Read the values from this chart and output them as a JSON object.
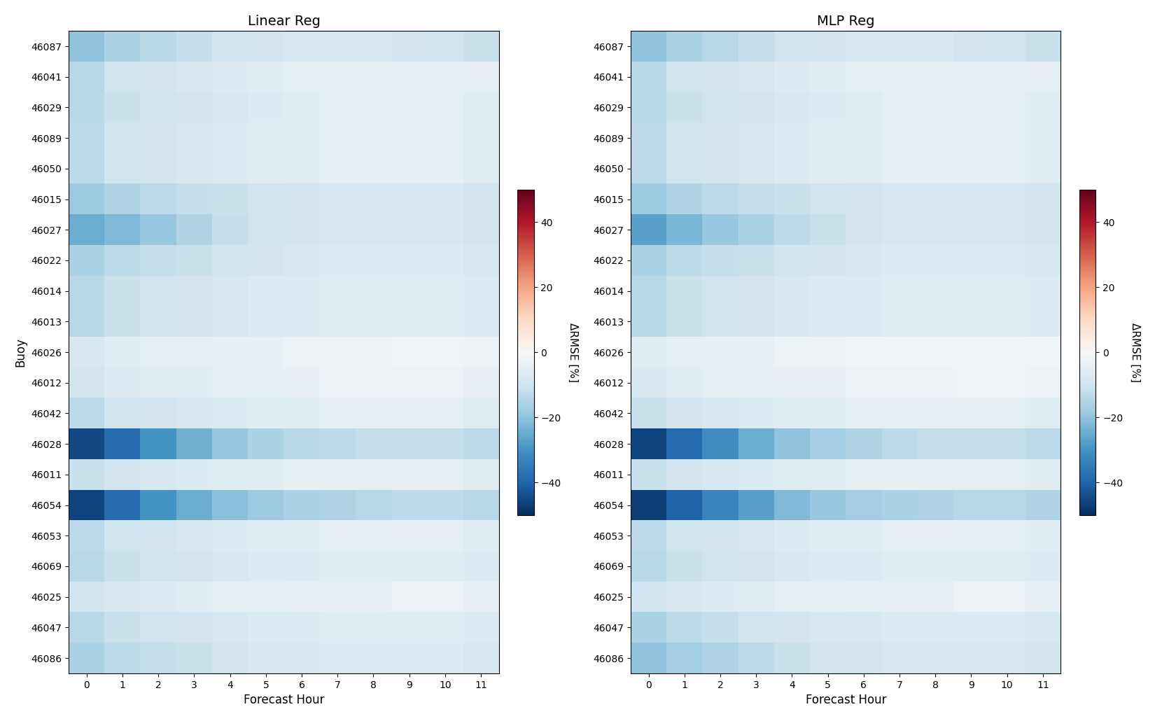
{
  "buoys": [
    "46087",
    "46041",
    "46029",
    "46089",
    "46050",
    "46015",
    "46027",
    "46022",
    "46014",
    "46013",
    "46026",
    "46012",
    "46042",
    "46028",
    "46011",
    "46054",
    "46053",
    "46069",
    "46025",
    "46047",
    "46086"
  ],
  "forecast_hours": [
    0,
    1,
    2,
    3,
    4,
    5,
    6,
    7,
    8,
    9,
    10,
    11
  ],
  "title_left": "Linear Reg",
  "title_right": "MLP Reg",
  "xlabel": "Forecast Hour",
  "ylabel": "Buoy",
  "cbar_label": "ΔRMSE [%]",
  "vmin": -50,
  "vmax": 50,
  "cmap": "RdBu_r",
  "linear_data": [
    [
      -20,
      -16,
      -14,
      -12,
      -10,
      -9,
      -8,
      -8,
      -8,
      -9,
      -10,
      -11
    ],
    [
      -14,
      -10,
      -9,
      -8,
      -7,
      -6,
      -5,
      -4,
      -4,
      -4,
      -4,
      -5
    ],
    [
      -14,
      -11,
      -10,
      -9,
      -8,
      -7,
      -6,
      -5,
      -5,
      -5,
      -5,
      -6
    ],
    [
      -13,
      -10,
      -9,
      -8,
      -7,
      -6,
      -6,
      -5,
      -5,
      -5,
      -5,
      -6
    ],
    [
      -13,
      -10,
      -9,
      -8,
      -7,
      -6,
      -6,
      -5,
      -5,
      -5,
      -5,
      -6
    ],
    [
      -18,
      -15,
      -13,
      -12,
      -11,
      -10,
      -9,
      -8,
      -8,
      -8,
      -8,
      -9
    ],
    [
      -25,
      -22,
      -19,
      -15,
      -12,
      -10,
      -9,
      -8,
      -8,
      -8,
      -8,
      -9
    ],
    [
      -16,
      -13,
      -12,
      -11,
      -10,
      -9,
      -8,
      -7,
      -7,
      -7,
      -7,
      -8
    ],
    [
      -14,
      -11,
      -10,
      -9,
      -8,
      -7,
      -7,
      -6,
      -6,
      -6,
      -6,
      -7
    ],
    [
      -14,
      -11,
      -10,
      -9,
      -8,
      -7,
      -7,
      -6,
      -6,
      -6,
      -6,
      -7
    ],
    [
      -8,
      -6,
      -5,
      -5,
      -4,
      -4,
      -3,
      -3,
      -3,
      -2,
      -2,
      -3
    ],
    [
      -9,
      -7,
      -6,
      -6,
      -5,
      -5,
      -4,
      -3,
      -3,
      -3,
      -3,
      -4
    ],
    [
      -13,
      -10,
      -9,
      -8,
      -7,
      -6,
      -6,
      -5,
      -5,
      -5,
      -5,
      -6
    ],
    [
      -45,
      -38,
      -30,
      -24,
      -19,
      -16,
      -14,
      -13,
      -12,
      -12,
      -12,
      -13
    ],
    [
      -11,
      -9,
      -8,
      -7,
      -6,
      -6,
      -5,
      -5,
      -5,
      -5,
      -5,
      -6
    ],
    [
      -46,
      -38,
      -30,
      -25,
      -21,
      -18,
      -16,
      -15,
      -14,
      -13,
      -13,
      -14
    ],
    [
      -13,
      -10,
      -9,
      -8,
      -7,
      -6,
      -6,
      -5,
      -5,
      -5,
      -5,
      -6
    ],
    [
      -14,
      -11,
      -10,
      -9,
      -8,
      -7,
      -7,
      -6,
      -6,
      -6,
      -6,
      -7
    ],
    [
      -10,
      -8,
      -7,
      -6,
      -5,
      -5,
      -4,
      -4,
      -4,
      -3,
      -3,
      -4
    ],
    [
      -14,
      -11,
      -10,
      -9,
      -8,
      -7,
      -7,
      -6,
      -6,
      -6,
      -6,
      -7
    ],
    [
      -16,
      -13,
      -12,
      -11,
      -9,
      -8,
      -8,
      -7,
      -7,
      -7,
      -7,
      -8
    ]
  ],
  "mlp_data": [
    [
      -20,
      -16,
      -14,
      -12,
      -10,
      -9,
      -8,
      -8,
      -8,
      -9,
      -10,
      -11
    ],
    [
      -14,
      -10,
      -9,
      -8,
      -7,
      -6,
      -5,
      -4,
      -4,
      -4,
      -4,
      -5
    ],
    [
      -14,
      -11,
      -10,
      -9,
      -8,
      -7,
      -6,
      -5,
      -5,
      -5,
      -5,
      -6
    ],
    [
      -13,
      -10,
      -9,
      -8,
      -7,
      -6,
      -6,
      -5,
      -5,
      -5,
      -5,
      -6
    ],
    [
      -13,
      -10,
      -9,
      -8,
      -7,
      -6,
      -6,
      -5,
      -5,
      -5,
      -5,
      -6
    ],
    [
      -18,
      -15,
      -13,
      -12,
      -11,
      -10,
      -9,
      -8,
      -8,
      -8,
      -8,
      -9
    ],
    [
      -27,
      -23,
      -19,
      -16,
      -13,
      -11,
      -9,
      -8,
      -8,
      -8,
      -8,
      -9
    ],
    [
      -16,
      -13,
      -12,
      -11,
      -10,
      -9,
      -8,
      -7,
      -7,
      -7,
      -7,
      -8
    ],
    [
      -14,
      -11,
      -10,
      -9,
      -8,
      -7,
      -7,
      -6,
      -6,
      -6,
      -6,
      -7
    ],
    [
      -14,
      -11,
      -10,
      -9,
      -8,
      -7,
      -7,
      -6,
      -6,
      -6,
      -6,
      -7
    ],
    [
      -6,
      -5,
      -4,
      -4,
      -3,
      -3,
      -2,
      -2,
      -2,
      -2,
      -2,
      -2
    ],
    [
      -8,
      -6,
      -5,
      -5,
      -4,
      -4,
      -3,
      -3,
      -3,
      -2,
      -2,
      -3
    ],
    [
      -11,
      -9,
      -8,
      -7,
      -6,
      -6,
      -5,
      -5,
      -5,
      -5,
      -5,
      -6
    ],
    [
      -46,
      -39,
      -31,
      -25,
      -20,
      -17,
      -15,
      -13,
      -12,
      -12,
      -12,
      -13
    ],
    [
      -11,
      -9,
      -8,
      -7,
      -6,
      -6,
      -5,
      -5,
      -5,
      -5,
      -5,
      -6
    ],
    [
      -47,
      -40,
      -33,
      -27,
      -22,
      -19,
      -17,
      -16,
      -15,
      -14,
      -14,
      -15
    ],
    [
      -13,
      -10,
      -9,
      -8,
      -7,
      -6,
      -6,
      -5,
      -5,
      -5,
      -5,
      -6
    ],
    [
      -14,
      -11,
      -10,
      -9,
      -8,
      -7,
      -7,
      -6,
      -6,
      -6,
      -6,
      -7
    ],
    [
      -10,
      -8,
      -7,
      -6,
      -5,
      -5,
      -4,
      -4,
      -4,
      -3,
      -3,
      -4
    ],
    [
      -16,
      -13,
      -12,
      -10,
      -9,
      -8,
      -8,
      -7,
      -7,
      -7,
      -7,
      -8
    ],
    [
      -20,
      -17,
      -15,
      -13,
      -11,
      -9,
      -9,
      -8,
      -8,
      -8,
      -8,
      -9
    ]
  ]
}
